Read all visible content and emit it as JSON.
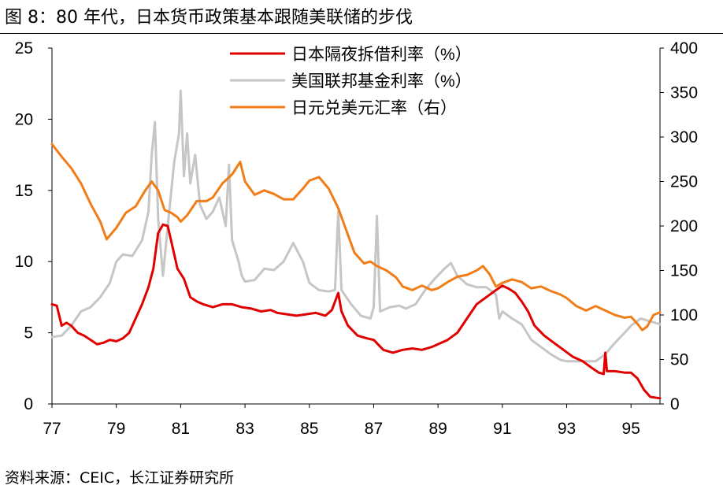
{
  "figure": {
    "title": "图 8：80 年代，日本货币政策基本跟随美联储的步伐",
    "source": "资料来源：CEIC，长江证券研究所"
  },
  "chart_data": {
    "type": "line",
    "x_tick_labels": [
      "77",
      "79",
      "81",
      "83",
      "85",
      "87",
      "89",
      "91",
      "93",
      "95"
    ],
    "x_tick_values": [
      1977,
      1979,
      1981,
      1983,
      1985,
      1987,
      1989,
      1991,
      1993,
      1995
    ],
    "xlim": [
      1977,
      1995.9
    ],
    "ylim_left": [
      0,
      25
    ],
    "yticks_left": [
      0,
      5,
      10,
      15,
      20,
      25
    ],
    "ylim_right": [
      0,
      400
    ],
    "yticks_right": [
      0,
      50,
      100,
      150,
      200,
      250,
      300,
      350,
      400
    ],
    "grid": false,
    "legend_position": "top-center",
    "series": [
      {
        "name": "日本隔夜拆借利率（%）",
        "axis": "left",
        "color": "#e00000",
        "points": [
          [
            1977.0,
            7.0
          ],
          [
            1977.15,
            6.9
          ],
          [
            1977.3,
            5.5
          ],
          [
            1977.45,
            5.7
          ],
          [
            1977.6,
            5.5
          ],
          [
            1977.8,
            5.0
          ],
          [
            1978.0,
            4.8
          ],
          [
            1978.2,
            4.5
          ],
          [
            1978.4,
            4.2
          ],
          [
            1978.6,
            4.3
          ],
          [
            1978.8,
            4.5
          ],
          [
            1979.0,
            4.4
          ],
          [
            1979.2,
            4.6
          ],
          [
            1979.4,
            5.0
          ],
          [
            1979.6,
            6.0
          ],
          [
            1979.8,
            7.0
          ],
          [
            1980.0,
            8.2
          ],
          [
            1980.15,
            9.5
          ],
          [
            1980.3,
            12.0
          ],
          [
            1980.45,
            12.6
          ],
          [
            1980.6,
            12.5
          ],
          [
            1980.75,
            11.0
          ],
          [
            1980.9,
            9.5
          ],
          [
            1981.1,
            8.8
          ],
          [
            1981.3,
            7.5
          ],
          [
            1981.5,
            7.2
          ],
          [
            1981.7,
            7.0
          ],
          [
            1982.0,
            6.8
          ],
          [
            1982.3,
            7.0
          ],
          [
            1982.6,
            7.0
          ],
          [
            1982.9,
            6.8
          ],
          [
            1983.2,
            6.7
          ],
          [
            1983.5,
            6.5
          ],
          [
            1983.8,
            6.6
          ],
          [
            1984.0,
            6.4
          ],
          [
            1984.3,
            6.3
          ],
          [
            1984.6,
            6.2
          ],
          [
            1984.9,
            6.3
          ],
          [
            1985.2,
            6.4
          ],
          [
            1985.5,
            6.2
          ],
          [
            1985.7,
            6.6
          ],
          [
            1985.9,
            7.8
          ],
          [
            1986.0,
            6.5
          ],
          [
            1986.2,
            5.5
          ],
          [
            1986.5,
            4.8
          ],
          [
            1986.8,
            4.6
          ],
          [
            1987.0,
            4.5
          ],
          [
            1987.3,
            3.8
          ],
          [
            1987.6,
            3.6
          ],
          [
            1987.9,
            3.8
          ],
          [
            1988.2,
            3.9
          ],
          [
            1988.5,
            3.8
          ],
          [
            1988.8,
            4.0
          ],
          [
            1989.0,
            4.2
          ],
          [
            1989.3,
            4.5
          ],
          [
            1989.6,
            5.0
          ],
          [
            1989.9,
            6.0
          ],
          [
            1990.2,
            7.0
          ],
          [
            1990.5,
            7.5
          ],
          [
            1990.8,
            8.0
          ],
          [
            1991.0,
            8.3
          ],
          [
            1991.2,
            8.1
          ],
          [
            1991.4,
            7.8
          ],
          [
            1991.6,
            7.2
          ],
          [
            1991.8,
            6.5
          ],
          [
            1992.0,
            5.5
          ],
          [
            1992.3,
            4.8
          ],
          [
            1992.6,
            4.3
          ],
          [
            1992.9,
            3.8
          ],
          [
            1993.2,
            3.3
          ],
          [
            1993.5,
            3.0
          ],
          [
            1993.8,
            2.5
          ],
          [
            1994.0,
            2.2
          ],
          [
            1994.15,
            2.1
          ],
          [
            1994.2,
            3.6
          ],
          [
            1994.25,
            2.3
          ],
          [
            1994.5,
            2.3
          ],
          [
            1994.8,
            2.2
          ],
          [
            1995.0,
            2.2
          ],
          [
            1995.2,
            1.8
          ],
          [
            1995.4,
            1.0
          ],
          [
            1995.6,
            0.5
          ],
          [
            1995.9,
            0.4
          ]
        ]
      },
      {
        "name": "美国联邦基金利率（%）",
        "axis": "left",
        "color": "#c6c6c6",
        "points": [
          [
            1977.0,
            4.7
          ],
          [
            1977.3,
            4.8
          ],
          [
            1977.6,
            5.5
          ],
          [
            1977.9,
            6.5
          ],
          [
            1978.2,
            6.8
          ],
          [
            1978.5,
            7.5
          ],
          [
            1978.8,
            8.5
          ],
          [
            1979.0,
            10.0
          ],
          [
            1979.2,
            10.5
          ],
          [
            1979.5,
            10.4
          ],
          [
            1979.8,
            11.5
          ],
          [
            1980.0,
            13.5
          ],
          [
            1980.1,
            17.5
          ],
          [
            1980.2,
            19.8
          ],
          [
            1980.3,
            13.0
          ],
          [
            1980.45,
            9.0
          ],
          [
            1980.6,
            12.5
          ],
          [
            1980.8,
            17.0
          ],
          [
            1980.95,
            19.0
          ],
          [
            1981.0,
            22.0
          ],
          [
            1981.1,
            16.0
          ],
          [
            1981.2,
            19.0
          ],
          [
            1981.3,
            15.5
          ],
          [
            1981.45,
            17.5
          ],
          [
            1981.6,
            14.0
          ],
          [
            1981.8,
            13.0
          ],
          [
            1982.0,
            13.5
          ],
          [
            1982.2,
            14.5
          ],
          [
            1982.4,
            12.5
          ],
          [
            1982.5,
            16.8
          ],
          [
            1982.6,
            11.5
          ],
          [
            1982.8,
            10.0
          ],
          [
            1982.9,
            9.0
          ],
          [
            1983.0,
            8.6
          ],
          [
            1983.3,
            8.7
          ],
          [
            1983.6,
            9.5
          ],
          [
            1983.9,
            9.4
          ],
          [
            1984.2,
            10.0
          ],
          [
            1984.5,
            11.3
          ],
          [
            1984.8,
            10.0
          ],
          [
            1985.0,
            8.5
          ],
          [
            1985.3,
            8.0
          ],
          [
            1985.6,
            7.9
          ],
          [
            1985.8,
            8.0
          ],
          [
            1985.9,
            13.5
          ],
          [
            1986.0,
            8.0
          ],
          [
            1986.3,
            7.0
          ],
          [
            1986.6,
            6.2
          ],
          [
            1986.9,
            6.0
          ],
          [
            1987.0,
            6.8
          ],
          [
            1987.1,
            13.2
          ],
          [
            1987.2,
            6.5
          ],
          [
            1987.5,
            6.8
          ],
          [
            1987.8,
            6.9
          ],
          [
            1988.0,
            6.7
          ],
          [
            1988.3,
            7.0
          ],
          [
            1988.6,
            8.0
          ],
          [
            1988.9,
            8.8
          ],
          [
            1989.2,
            9.5
          ],
          [
            1989.4,
            9.9
          ],
          [
            1989.6,
            9.0
          ],
          [
            1989.9,
            8.4
          ],
          [
            1990.2,
            8.2
          ],
          [
            1990.5,
            8.2
          ],
          [
            1990.8,
            7.7
          ],
          [
            1990.9,
            6.0
          ],
          [
            1991.0,
            6.5
          ],
          [
            1991.3,
            6.0
          ],
          [
            1991.6,
            5.6
          ],
          [
            1991.9,
            4.5
          ],
          [
            1992.2,
            4.0
          ],
          [
            1992.5,
            3.5
          ],
          [
            1992.8,
            3.1
          ],
          [
            1993.0,
            3.0
          ],
          [
            1993.3,
            3.0
          ],
          [
            1993.6,
            3.0
          ],
          [
            1993.9,
            3.0
          ],
          [
            1994.2,
            3.5
          ],
          [
            1994.5,
            4.3
          ],
          [
            1994.8,
            5.0
          ],
          [
            1995.0,
            5.5
          ],
          [
            1995.3,
            6.0
          ],
          [
            1995.6,
            5.8
          ],
          [
            1995.9,
            5.6
          ]
        ]
      },
      {
        "name": "日元兑美元汇率（右）",
        "axis": "right",
        "color": "#f07d18",
        "points": [
          [
            1977.0,
            292
          ],
          [
            1977.3,
            278
          ],
          [
            1977.6,
            265
          ],
          [
            1977.9,
            248
          ],
          [
            1978.2,
            225
          ],
          [
            1978.5,
            205
          ],
          [
            1978.7,
            185
          ],
          [
            1979.0,
            198
          ],
          [
            1979.3,
            215
          ],
          [
            1979.6,
            222
          ],
          [
            1979.9,
            240
          ],
          [
            1980.1,
            250
          ],
          [
            1980.3,
            240
          ],
          [
            1980.5,
            218
          ],
          [
            1980.7,
            215
          ],
          [
            1980.9,
            210
          ],
          [
            1981.0,
            205
          ],
          [
            1981.2,
            212
          ],
          [
            1981.5,
            228
          ],
          [
            1981.8,
            228
          ],
          [
            1982.0,
            232
          ],
          [
            1982.3,
            248
          ],
          [
            1982.6,
            258
          ],
          [
            1982.85,
            272
          ],
          [
            1983.0,
            250
          ],
          [
            1983.3,
            235
          ],
          [
            1983.6,
            240
          ],
          [
            1983.9,
            236
          ],
          [
            1984.2,
            230
          ],
          [
            1984.5,
            230
          ],
          [
            1984.8,
            242
          ],
          [
            1985.0,
            251
          ],
          [
            1985.3,
            255
          ],
          [
            1985.6,
            242
          ],
          [
            1985.9,
            220
          ],
          [
            1986.1,
            200
          ],
          [
            1986.4,
            170
          ],
          [
            1986.7,
            158
          ],
          [
            1986.9,
            160
          ],
          [
            1987.1,
            155
          ],
          [
            1987.4,
            150
          ],
          [
            1987.7,
            142
          ],
          [
            1987.9,
            132
          ],
          [
            1988.2,
            128
          ],
          [
            1988.5,
            133
          ],
          [
            1988.8,
            128
          ],
          [
            1989.0,
            130
          ],
          [
            1989.3,
            137
          ],
          [
            1989.6,
            143
          ],
          [
            1989.9,
            145
          ],
          [
            1990.2,
            150
          ],
          [
            1990.4,
            155
          ],
          [
            1990.6,
            146
          ],
          [
            1990.8,
            132
          ],
          [
            1991.0,
            136
          ],
          [
            1991.3,
            140
          ],
          [
            1991.6,
            137
          ],
          [
            1991.9,
            130
          ],
          [
            1992.2,
            132
          ],
          [
            1992.5,
            127
          ],
          [
            1992.8,
            123
          ],
          [
            1993.0,
            119
          ],
          [
            1993.3,
            110
          ],
          [
            1993.6,
            105
          ],
          [
            1993.9,
            110
          ],
          [
            1994.2,
            105
          ],
          [
            1994.5,
            100
          ],
          [
            1994.8,
            97
          ],
          [
            1995.0,
            98
          ],
          [
            1995.2,
            90
          ],
          [
            1995.35,
            83
          ],
          [
            1995.5,
            87
          ],
          [
            1995.7,
            100
          ],
          [
            1995.9,
            103
          ]
        ]
      }
    ]
  }
}
